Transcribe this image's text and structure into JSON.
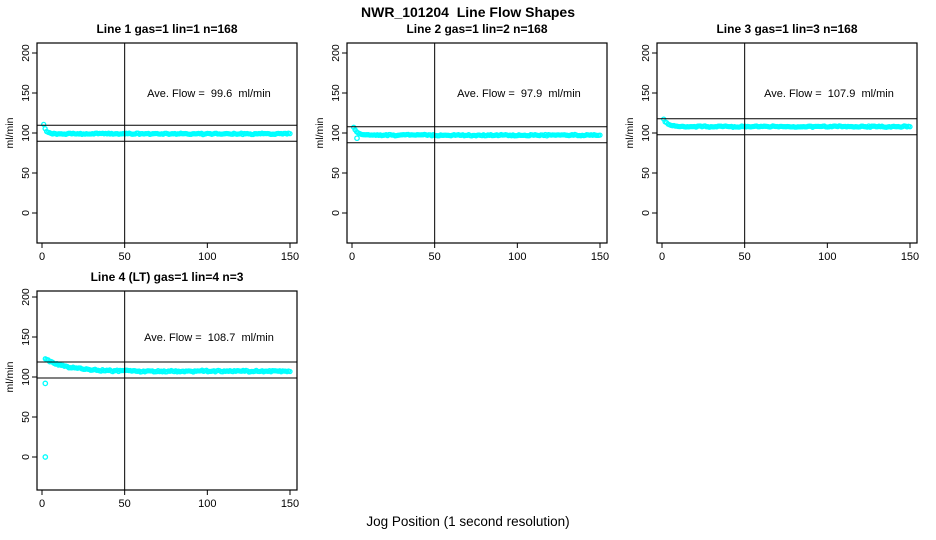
{
  "page": {
    "title": "NWR_101204  Line Flow Shapes",
    "xlabel": "Jog Position (1 second resolution)",
    "point_color": "#00ffff",
    "axis_color": "#000000",
    "background_color": "#ffffff"
  },
  "chart_data": [
    {
      "type": "scatter",
      "title": "Line 1 gas=1 lin=1 n=168",
      "annotation": "Ave. Flow =  99.6  ml/min",
      "ave_flow_ml_min": 99.6,
      "n_points": 168,
      "ylabel": "ml/min",
      "xlim": [
        0,
        150
      ],
      "ylim": [
        0,
        200
      ],
      "xticks": [
        0,
        50,
        100,
        150
      ],
      "yticks": [
        0,
        50,
        100,
        150,
        200
      ],
      "vline_x": 50,
      "hlines_y": [
        109.6,
        89.6
      ],
      "trend": {
        "start": 111,
        "settle": 99,
        "tau": 1.5,
        "noise": 1.0,
        "x_start": 1,
        "x_end": 150,
        "seed": 11
      },
      "extra_points": []
    },
    {
      "type": "scatter",
      "title": "Line 2 gas=1 lin=2 n=168",
      "annotation": "Ave. Flow =  97.9  ml/min",
      "ave_flow_ml_min": 97.9,
      "n_points": 168,
      "ylabel": "ml/min",
      "xlim": [
        0,
        150
      ],
      "ylim": [
        0,
        200
      ],
      "xticks": [
        0,
        50,
        100,
        150
      ],
      "yticks": [
        0,
        50,
        100,
        150,
        200
      ],
      "vline_x": 50,
      "hlines_y": [
        107.9,
        87.9
      ],
      "trend": {
        "start": 107,
        "settle": 97.3,
        "tau": 2.2,
        "noise": 1.0,
        "x_start": 1,
        "x_end": 150,
        "seed": 22
      },
      "extra_points": [
        [
          3,
          93.5
        ]
      ]
    },
    {
      "type": "scatter",
      "title": "Line 3 gas=1 lin=3 n=168",
      "annotation": "Ave. Flow =  107.9  ml/min",
      "ave_flow_ml_min": 107.9,
      "n_points": 168,
      "ylabel": "ml/min",
      "xlim": [
        0,
        150
      ],
      "ylim": [
        0,
        200
      ],
      "xticks": [
        0,
        50,
        100,
        150
      ],
      "yticks": [
        0,
        50,
        100,
        150,
        200
      ],
      "vline_x": 50,
      "hlines_y": [
        117.9,
        97.9
      ],
      "trend": {
        "start": 117,
        "settle": 108,
        "tau": 2.5,
        "noise": 1.0,
        "x_start": 1,
        "x_end": 150,
        "seed": 33
      },
      "extra_points": []
    },
    {
      "type": "scatter",
      "title": "Line 4 (LT) gas=1 lin=4 n=3",
      "annotation": "Ave. Flow =  108.7  ml/min",
      "ave_flow_ml_min": 108.7,
      "n_points": 3,
      "ylabel": "ml/min",
      "xlim": [
        0,
        150
      ],
      "ylim": [
        0,
        200
      ],
      "xticks": [
        0,
        50,
        100,
        150
      ],
      "yticks": [
        0,
        50,
        100,
        150,
        200
      ],
      "vline_x": 50,
      "hlines_y": [
        118.7,
        98.7
      ],
      "trend": {
        "start": 123,
        "settle": 107.3,
        "tau": 13,
        "noise": 1.3,
        "x_start": 2,
        "x_end": 150,
        "seed": 44
      },
      "extra_points": [
        [
          2,
          92
        ],
        [
          2,
          0
        ]
      ]
    }
  ]
}
